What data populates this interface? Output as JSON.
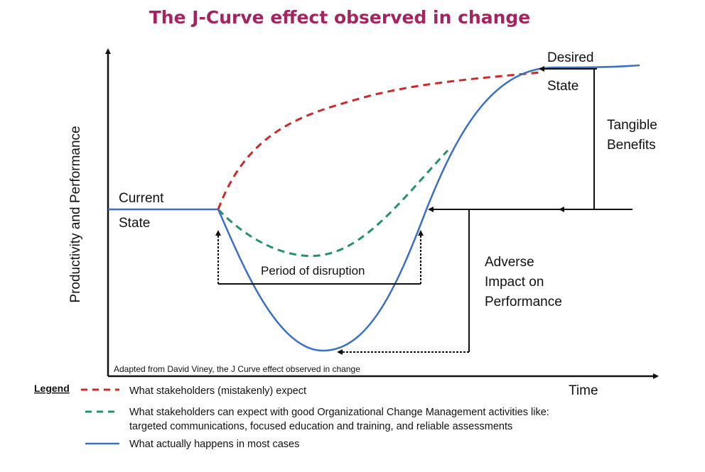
{
  "title": "The J-Curve effect observed in change",
  "colors": {
    "title": "#a3245e",
    "expected": "#cc2a2a",
    "ocm": "#259070",
    "actual": "#3b6fc4",
    "axis": "#111111"
  },
  "axes": {
    "y_label": "Productivity and Performance",
    "x_label": "Time"
  },
  "labels": {
    "current_state_line1": "Current",
    "current_state_line2": "State",
    "desired_state_line1": "Desired",
    "desired_state_line2": "State",
    "tangible_line1": "Tangible",
    "tangible_line2": "Benefits",
    "adverse_line1": "Adverse",
    "adverse_line2": "Impact on",
    "adverse_line3": "Performance",
    "disruption": "Period of disruption"
  },
  "credit": "Adapted from David Viney, the J Curve effect observed in change",
  "legend": {
    "heading": "Legend",
    "items": [
      {
        "lines": [
          "What stakeholders (mistakenly) expect"
        ]
      },
      {
        "lines": [
          "What stakeholders can expect with good Organizational Change Management activities like:",
          "targeted communications, focused education and training, and reliable assessments"
        ]
      },
      {
        "lines": [
          "What actually happens in most cases"
        ]
      }
    ]
  }
}
